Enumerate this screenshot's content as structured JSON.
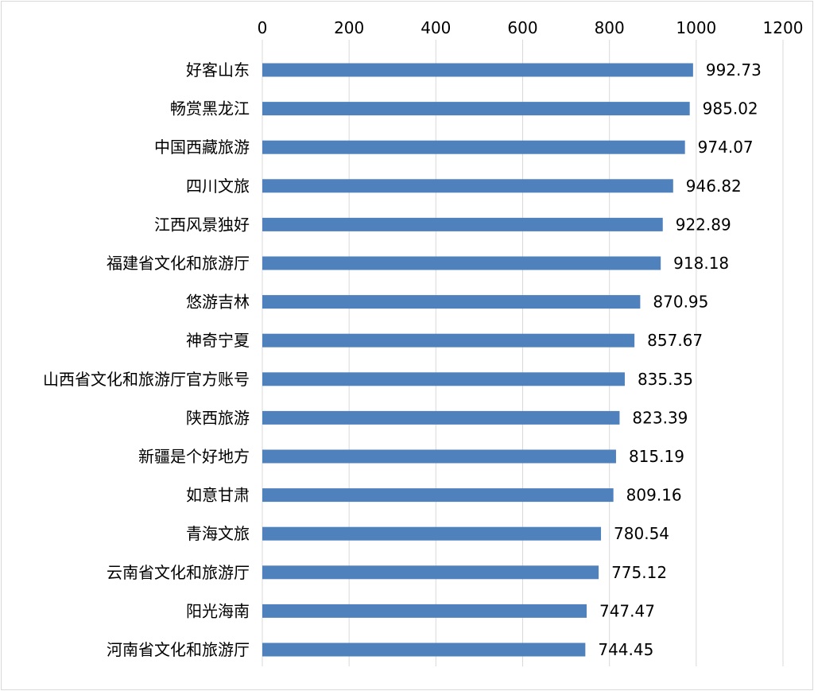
{
  "chart_data": {
    "type": "bar",
    "orientation": "horizontal",
    "categories": [
      "好客山东",
      "畅赏黑龙江",
      "中国西藏旅游",
      "四川文旅",
      "江西风景独好",
      "福建省文化和旅游厅",
      "悠游吉林",
      "神奇宁夏",
      "山西省文化和旅游厅官方账号",
      "陕西旅游",
      "新疆是个好地方",
      "如意甘肃",
      "青海文旅",
      "云南省文化和旅游厅",
      "阳光海南",
      "河南省文化和旅游厅"
    ],
    "values": [
      992.73,
      985.02,
      974.07,
      946.82,
      922.89,
      918.18,
      870.95,
      857.67,
      835.35,
      823.39,
      815.19,
      809.16,
      780.54,
      775.12,
      747.47,
      744.45
    ],
    "value_labels": [
      "992.73",
      "985.02",
      "974.07",
      "946.82",
      "922.89",
      "918.18",
      "870.95",
      "857.67",
      "835.35",
      "823.39",
      "815.19",
      "809.16",
      "780.54",
      "775.12",
      "747.47",
      "744.45"
    ],
    "x_ticks": [
      "0",
      "200",
      "400",
      "600",
      "800",
      "1000",
      "1200"
    ],
    "xlim": [
      0,
      1200
    ],
    "title": "",
    "xlabel": "",
    "ylabel": "",
    "grid": true,
    "x_axis_position": "top",
    "bar_color": "#4f81bd",
    "grid_color": "#d9d9d9"
  }
}
